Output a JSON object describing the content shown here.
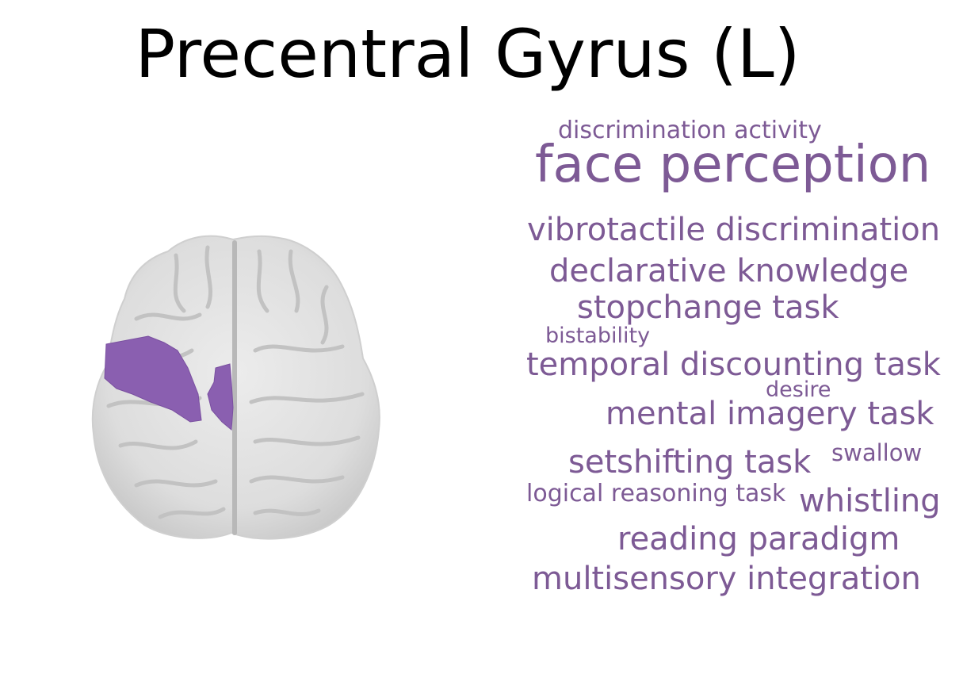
{
  "title": "Precentral Gyrus (L)",
  "colors": {
    "accent": "#7d5a95",
    "region": "#8a5fb0",
    "brain": "#e3e3e3"
  },
  "brain_image": {
    "icon": "axial-brain-slice-icon"
  },
  "word_cloud": [
    {
      "text": "discrimination activity"
    },
    {
      "text": "face perception"
    },
    {
      "text": "vibrotactile discrimination"
    },
    {
      "text": "declarative knowledge"
    },
    {
      "text": "stopchange task"
    },
    {
      "text": "bistability"
    },
    {
      "text": "temporal discounting task"
    },
    {
      "text": "desire"
    },
    {
      "text": "mental imagery task"
    },
    {
      "text": "setshifting task"
    },
    {
      "text": "swallow"
    },
    {
      "text": "logical reasoning task"
    },
    {
      "text": "whistling"
    },
    {
      "text": "reading paradigm"
    },
    {
      "text": "multisensory integration"
    }
  ]
}
